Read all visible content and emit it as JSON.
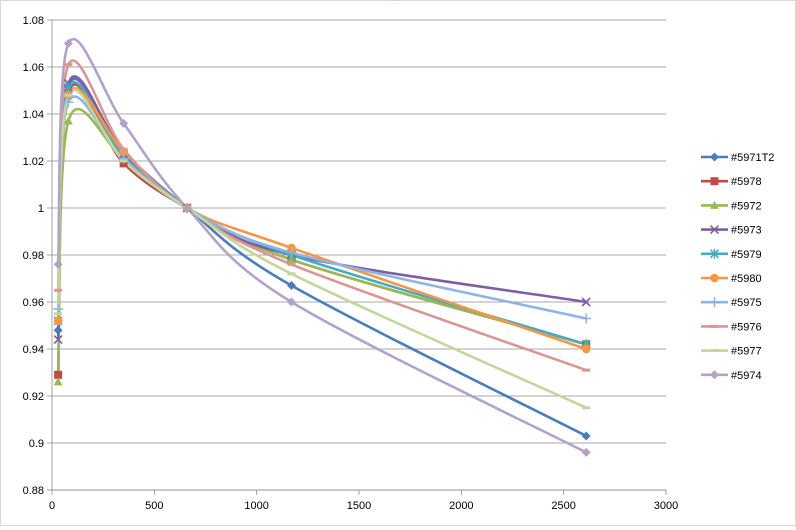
{
  "chart_data": {
    "type": "line",
    "title": "",
    "xlabel": "",
    "ylabel": "",
    "xlim": [
      0,
      3000
    ],
    "ylim": [
      0.88,
      1.08
    ],
    "x_ticks": [
      0,
      500,
      1000,
      1500,
      2000,
      2500,
      3000
    ],
    "y_ticks": [
      0.88,
      0.9,
      0.92,
      0.94,
      0.96,
      0.98,
      1,
      1.02,
      1.04,
      1.06,
      1.08
    ],
    "y_tick_labels": [
      "0.88",
      "0.9",
      "0.92",
      "0.94",
      "0.96",
      "0.98",
      "1",
      "1.02",
      "1.04",
      "1.06",
      "1.08"
    ],
    "x_tick_labels": [
      "0",
      "500",
      "1000",
      "1500",
      "2000",
      "2500",
      "3000"
    ],
    "grid": "horizontal",
    "legend_position": "right",
    "smooth": true,
    "x": [
      30,
      80,
      350,
      660,
      1170,
      2610
    ],
    "series": [
      {
        "name": "#5971T2",
        "color": "#4a7ebb",
        "marker": "diamond",
        "values": [
          0.948,
          1.052,
          1.024,
          1.0,
          0.967,
          0.903
        ]
      },
      {
        "name": "#5978",
        "color": "#be4b48",
        "marker": "square",
        "values": [
          0.929,
          1.049,
          1.019,
          1.0,
          0.978,
          0.942
        ]
      },
      {
        "name": "#5972",
        "color": "#98b954",
        "marker": "triangle",
        "values": [
          0.926,
          1.037,
          1.021,
          1.0,
          0.978,
          0.942
        ]
      },
      {
        "name": "#5973",
        "color": "#7d60a0",
        "marker": "x",
        "values": [
          0.944,
          1.053,
          1.023,
          1.0,
          0.98,
          0.96
        ]
      },
      {
        "name": "#5979",
        "color": "#46aac5",
        "marker": "star",
        "values": [
          0.952,
          1.051,
          1.022,
          1.0,
          0.98,
          0.942
        ]
      },
      {
        "name": "#5980",
        "color": "#f79646",
        "marker": "circle",
        "values": [
          0.952,
          1.048,
          1.024,
          1.0,
          0.983,
          0.94
        ]
      },
      {
        "name": "#5975",
        "color": "#8eb4e3",
        "marker": "plus",
        "values": [
          0.957,
          1.045,
          1.021,
          1.0,
          0.981,
          0.953
        ]
      },
      {
        "name": "#5976",
        "color": "#d99694",
        "marker": "dash",
        "values": [
          0.965,
          1.061,
          1.025,
          1.0,
          0.976,
          0.931
        ]
      },
      {
        "name": "#5977",
        "color": "#c3d69b",
        "marker": "dash",
        "values": [
          0.955,
          1.048,
          1.02,
          1.0,
          0.972,
          0.915
        ]
      },
      {
        "name": "#5974",
        "color": "#b3a2c7",
        "marker": "diamond",
        "values": [
          0.976,
          1.07,
          1.036,
          1.0,
          0.96,
          0.896
        ]
      }
    ]
  }
}
